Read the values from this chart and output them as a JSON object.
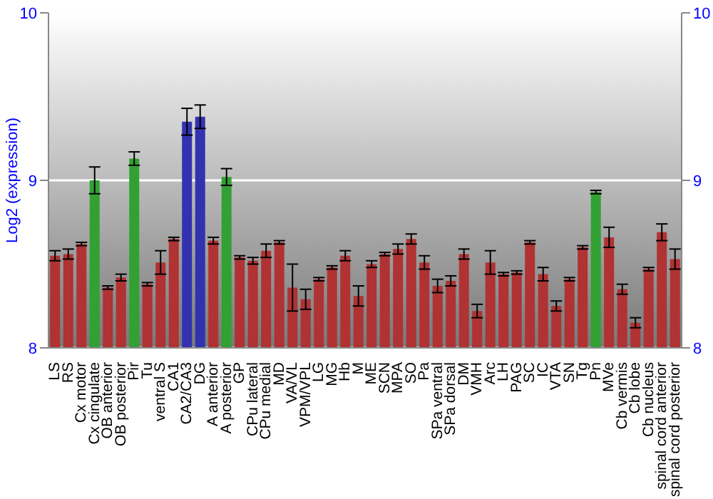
{
  "chart_data": {
    "type": "bar",
    "ylabel": "Log2 (expression)",
    "categories": [
      "LS",
      "RS",
      "Cx motor",
      "Cx cingulate",
      "OB anterior",
      "OB posterior",
      "Pir",
      "Tu",
      "ventral S",
      "CA1",
      "CA2/CA3",
      "DG",
      "A anterior",
      "A posterior",
      "GP",
      "CPu lateral",
      "CPu medial",
      "MD",
      "VA/VL",
      "VPM/VPL",
      "LG",
      "MG",
      "Hb",
      "M",
      "ME",
      "SCN",
      "MPA",
      "SO",
      "Pa",
      "SPa ventral",
      "SPa dorsal",
      "DM",
      "VMH",
      "Arc",
      "LH",
      "PAG",
      "SC",
      "IC",
      "VTA",
      "SN",
      "Tg",
      "Pn",
      "MVe",
      "Cb vermis",
      "Cb lobe",
      "Cb nucleus",
      "spinal cord anterior",
      "spinal cord posterior"
    ],
    "values": [
      8.55,
      8.56,
      8.62,
      9.0,
      8.36,
      8.42,
      9.13,
      8.38,
      8.51,
      8.65,
      9.35,
      9.38,
      8.64,
      9.02,
      8.54,
      8.52,
      8.58,
      8.63,
      8.36,
      8.29,
      8.41,
      8.48,
      8.55,
      8.31,
      8.5,
      8.56,
      8.59,
      8.65,
      8.51,
      8.37,
      8.4,
      8.56,
      8.22,
      8.51,
      8.44,
      8.45,
      8.63,
      8.44,
      8.25,
      8.41,
      8.6,
      8.93,
      8.66,
      8.35,
      8.15,
      8.47,
      8.69,
      8.53
    ],
    "errors": [
      0.03,
      0.03,
      0.01,
      0.08,
      0.01,
      0.02,
      0.04,
      0.01,
      0.07,
      0.01,
      0.08,
      0.07,
      0.02,
      0.05,
      0.01,
      0.02,
      0.04,
      0.01,
      0.14,
      0.06,
      0.01,
      0.01,
      0.03,
      0.06,
      0.02,
      0.01,
      0.03,
      0.03,
      0.04,
      0.04,
      0.03,
      0.03,
      0.04,
      0.07,
      0.01,
      0.01,
      0.01,
      0.04,
      0.03,
      0.01,
      0.01,
      0.01,
      0.06,
      0.03,
      0.03,
      0.01,
      0.05,
      0.06
    ],
    "colors": [
      "#b03232",
      "#b03232",
      "#b03232",
      "#32a032",
      "#b03232",
      "#b03232",
      "#32a032",
      "#b03232",
      "#b03232",
      "#b03232",
      "#3232b0",
      "#3232b0",
      "#b03232",
      "#32a032",
      "#b03232",
      "#b03232",
      "#b03232",
      "#b03232",
      "#b03232",
      "#b03232",
      "#b03232",
      "#b03232",
      "#b03232",
      "#b03232",
      "#b03232",
      "#b03232",
      "#b03232",
      "#b03232",
      "#b03232",
      "#b03232",
      "#b03232",
      "#b03232",
      "#b03232",
      "#b03232",
      "#b03232",
      "#b03232",
      "#b03232",
      "#b03232",
      "#b03232",
      "#b03232",
      "#b03232",
      "#32a032",
      "#b03232",
      "#b03232",
      "#b03232",
      "#b03232",
      "#b03232",
      "#b03232"
    ],
    "ylim": [
      8,
      10
    ],
    "yticks": [
      8,
      9,
      10
    ],
    "y2lim": [
      8,
      10
    ],
    "y2ticks": [
      8,
      9,
      10
    ],
    "grid": "y"
  }
}
